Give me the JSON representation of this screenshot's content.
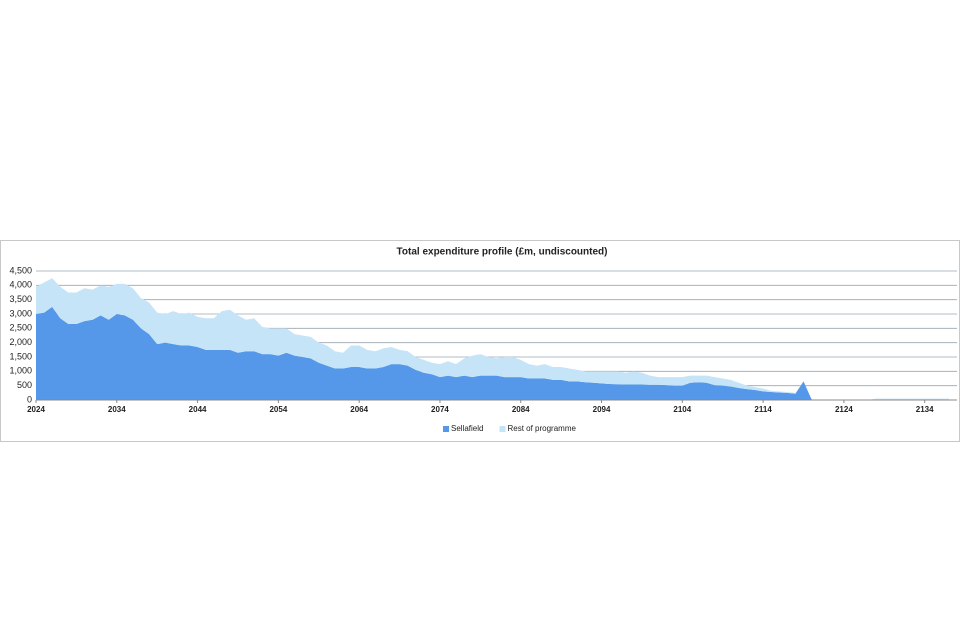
{
  "chart_data": {
    "type": "stacked_area",
    "title": "Total expenditure profile (£m, undiscounted)",
    "x": [
      2024,
      2025,
      2026,
      2027,
      2028,
      2029,
      2030,
      2031,
      2032,
      2033,
      2034,
      2035,
      2036,
      2037,
      2038,
      2039,
      2040,
      2041,
      2042,
      2043,
      2044,
      2045,
      2046,
      2047,
      2048,
      2049,
      2050,
      2051,
      2052,
      2053,
      2054,
      2055,
      2056,
      2057,
      2058,
      2059,
      2060,
      2061,
      2062,
      2063,
      2064,
      2065,
      2066,
      2067,
      2068,
      2069,
      2070,
      2071,
      2072,
      2073,
      2074,
      2075,
      2076,
      2077,
      2078,
      2079,
      2080,
      2081,
      2082,
      2083,
      2084,
      2085,
      2086,
      2087,
      2088,
      2089,
      2090,
      2091,
      2092,
      2093,
      2094,
      2095,
      2096,
      2097,
      2098,
      2099,
      2100,
      2101,
      2102,
      2103,
      2104,
      2105,
      2106,
      2107,
      2108,
      2109,
      2110,
      2111,
      2112,
      2113,
      2114,
      2115,
      2116,
      2117,
      2118,
      2119,
      2120,
      2121,
      2122,
      2123,
      2124,
      2125,
      2126,
      2127,
      2128,
      2129,
      2130,
      2131,
      2132,
      2133,
      2134,
      2135,
      2136,
      2137
    ],
    "series": [
      {
        "name": "Sellafield",
        "color": "#5597e8",
        "values": [
          3000,
          3050,
          3250,
          2850,
          2650,
          2650,
          2750,
          2800,
          2950,
          2800,
          3000,
          2950,
          2800,
          2500,
          2300,
          1950,
          2000,
          1950,
          1900,
          1900,
          1850,
          1750,
          1750,
          1750,
          1750,
          1650,
          1700,
          1700,
          1600,
          1600,
          1550,
          1650,
          1550,
          1500,
          1450,
          1300,
          1200,
          1100,
          1100,
          1150,
          1150,
          1100,
          1100,
          1150,
          1250,
          1250,
          1200,
          1050,
          950,
          900,
          800,
          850,
          800,
          850,
          800,
          850,
          850,
          850,
          800,
          800,
          800,
          750,
          750,
          750,
          700,
          700,
          650,
          650,
          620,
          600,
          580,
          560,
          550,
          540,
          540,
          540,
          530,
          530,
          520,
          500,
          500,
          600,
          620,
          600,
          520,
          500,
          470,
          420,
          380,
          350,
          300,
          280,
          260,
          250,
          220,
          650,
          20,
          0,
          0,
          0,
          0,
          0,
          0,
          0,
          0,
          0,
          0,
          0,
          0,
          0,
          0,
          0,
          0,
          0
        ]
      },
      {
        "name": "Rest of programme",
        "color": "#c6e4f7",
        "values": [
          950,
          1050,
          1000,
          1100,
          1100,
          1100,
          1150,
          1050,
          1050,
          1150,
          1050,
          1100,
          1100,
          1050,
          1100,
          1100,
          1000,
          1150,
          1100,
          1150,
          1050,
          1100,
          1100,
          1350,
          1400,
          1300,
          1100,
          1150,
          950,
          900,
          950,
          850,
          750,
          750,
          750,
          700,
          700,
          600,
          550,
          750,
          750,
          650,
          600,
          650,
          600,
          500,
          500,
          450,
          450,
          400,
          450,
          500,
          450,
          600,
          750,
          750,
          650,
          600,
          700,
          700,
          600,
          500,
          450,
          500,
          450,
          450,
          450,
          400,
          380,
          400,
          420,
          440,
          450,
          410,
          460,
          410,
          320,
          270,
          280,
          300,
          300,
          250,
          230,
          250,
          280,
          250,
          230,
          180,
          120,
          100,
          100,
          40,
          40,
          30,
          30,
          0,
          0,
          0,
          0,
          0,
          0,
          0,
          0,
          0,
          50,
          50,
          50,
          50,
          50,
          50,
          50,
          50,
          50,
          50
        ]
      }
    ],
    "xlim": [
      2024,
      2138
    ],
    "xticks": [
      2024,
      2034,
      2044,
      2054,
      2064,
      2074,
      2084,
      2094,
      2104,
      2114,
      2124,
      2134
    ],
    "ylim": [
      0,
      4500
    ],
    "yticks": [
      0,
      500,
      {
        "value": 1000,
        "label": "1,000"
      },
      {
        "value": 1500,
        "label": "1,500"
      },
      {
        "value": 2000,
        "label": "2,000"
      },
      {
        "value": 2500,
        "label": "2,500"
      },
      {
        "value": 3000,
        "label": "3,000"
      },
      {
        "value": 3500,
        "label": "3,500"
      },
      {
        "value": 4000,
        "label": "4,000"
      },
      {
        "value": 4500,
        "label": "4,500"
      }
    ],
    "grid": true,
    "legend": "bottom"
  }
}
